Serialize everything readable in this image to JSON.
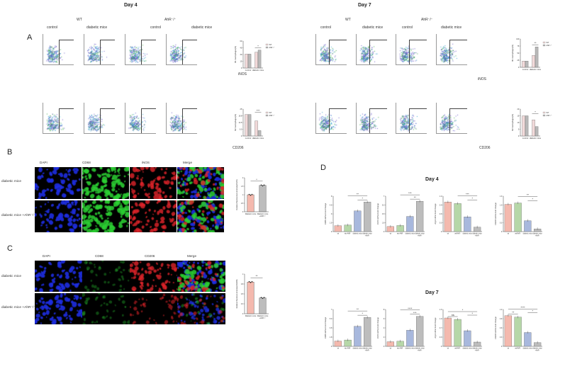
{
  "headers": {
    "day4": "Day 4",
    "day7": "Day 7"
  },
  "panels": {
    "A": "A",
    "B": "B",
    "C": "C",
    "D": "D"
  },
  "flow": {
    "group_wt": "WT",
    "group_ahr": "AhR⁻/⁻",
    "col_labels": [
      "control",
      "diabetic mice",
      "control",
      "diabetic mice"
    ],
    "axis_inos": "iNOS",
    "axis_cd206": "CD206"
  },
  "panelB": {
    "columns": [
      "DAPI",
      "CD68",
      "iNOS",
      "Merge"
    ],
    "rows": [
      "diabetic mice",
      "diabetic mice +AhR⁻/⁻"
    ]
  },
  "panelC": {
    "columns": [
      "DAPI",
      "CD68",
      "CD206",
      "Merge"
    ],
    "rows": [
      "diabetic mice",
      "diabetic mice +AhR⁻/⁻"
    ]
  },
  "panelD": {
    "day4": "Day 4",
    "day7": "Day 7"
  },
  "colors": {
    "wt": "#f1d9d9",
    "ahr": "#b9b9b9",
    "pink": "#f4b9ae",
    "green": "#b6d7a8",
    "blue": "#a8b8dd",
    "grey": "#bdbdbd",
    "dapi": "#1e2ee0",
    "cd68": "#2bcf33",
    "red": "#e0242a"
  },
  "chart_data": [
    {
      "type": "bar",
      "title": "",
      "ylabel": "M1 macrophages(%)",
      "categories": [
        "control",
        "diabetic mice"
      ],
      "series": [
        {
          "name": "WT",
          "values": [
            31,
            35
          ]
        },
        {
          "name": "AhR⁻/⁻",
          "values": [
            31,
            40
          ]
        }
      ],
      "ylim": [
        0,
        60
      ],
      "annotation": "*"
    },
    {
      "type": "bar",
      "title": "",
      "ylabel": "M2 macrophages(%)",
      "categories": [
        "control",
        "diabetic mice"
      ],
      "series": [
        {
          "name": "WT",
          "values": [
            20,
            14
          ]
        },
        {
          "name": "AhR⁻/⁻",
          "values": [
            20,
            5
          ]
        }
      ],
      "ylim": [
        0,
        25
      ],
      "annotation": "***"
    },
    {
      "type": "bar",
      "title": "",
      "ylabel": "M1 macrophages(%)",
      "categories": [
        "control",
        "diabetic mice"
      ],
      "series": [
        {
          "name": "WT",
          "values": [
            22,
            42
          ]
        },
        {
          "name": "AhR⁻/⁻",
          "values": [
            22,
            72
          ]
        }
      ],
      "ylim": [
        0,
        100
      ],
      "annotation": "**"
    },
    {
      "type": "bar",
      "title": "",
      "ylabel": "M2 macrophages(%)",
      "categories": [
        "control",
        "diabetic mice"
      ],
      "series": [
        {
          "name": "WT",
          "values": [
            15,
            12
          ]
        },
        {
          "name": "AhR⁻/⁻",
          "values": [
            15,
            7
          ]
        }
      ],
      "ylim": [
        0,
        20
      ],
      "annotation": "*"
    },
    {
      "type": "bar",
      "title": "",
      "ylabel": "Relative fluorescence intensity(iNOS)",
      "categories": [
        "Diabetic mice",
        "Diabetic mice+ AhR⁻/⁻"
      ],
      "values": [
        1.0,
        1.55
      ],
      "ylim": [
        0,
        2.0
      ],
      "annotation": "*"
    },
    {
      "type": "bar",
      "title": "",
      "ylabel": "Relative fluorence intensity(CD206)",
      "categories": [
        "Diabetic mice",
        "Diabetic mice+ AhR⁻/⁻"
      ],
      "values": [
        0.8,
        0.4
      ],
      "ylim": [
        0,
        1.0
      ],
      "annotation": "**"
    },
    {
      "type": "bar",
      "title": "",
      "ylabel": "CD86 mRNA Fold Change",
      "categories": [
        "wt",
        "wt+AhR⁻",
        "diabetic mice",
        "diabetic mice +AhR⁻"
      ],
      "values": [
        1.0,
        1.1,
        3.5,
        5.0
      ],
      "ylim": [
        0,
        6
      ],
      "annotations": [
        "**",
        "*"
      ]
    },
    {
      "type": "bar",
      "title": "",
      "ylabel": "iNOS mRNA Fold Change",
      "categories": [
        "wt",
        "wt+AhR⁻",
        "diabetic mice",
        "diabetic mice +AhR⁻"
      ],
      "values": [
        1.0,
        1.2,
        3.0,
        6.0
      ],
      "ylim": [
        0,
        7
      ],
      "annotations": [
        "***",
        "**"
      ]
    },
    {
      "type": "bar",
      "title": "",
      "ylabel": "Arg1 mRNA Fold Change",
      "categories": [
        "wt",
        "wt/AhR⁻",
        "diabetic mice",
        "diabetic mice +AhR⁻"
      ],
      "values": [
        1.0,
        0.95,
        0.5,
        0.15
      ],
      "ylim": [
        0,
        1.2
      ],
      "annotations": [
        "***",
        "*"
      ]
    },
    {
      "type": "bar",
      "title": "",
      "ylabel": "CD206 mRNA Fold Change",
      "categories": [
        "wt",
        "wt/AhR⁻",
        "diabetic mice",
        "diabetic mice +AhR⁻"
      ],
      "values": [
        1.0,
        1.05,
        0.4,
        0.1
      ],
      "ylim": [
        0,
        1.3
      ],
      "annotations": [
        "**",
        "*"
      ]
    },
    {
      "type": "bar",
      "title": "",
      "ylabel": "CD86 mRNA Fold Change",
      "categories": [
        "wt",
        "wt+AhR⁻",
        "diabetic mice",
        "diabetic mice +AhR⁻"
      ],
      "values": [
        1.0,
        1.2,
        3.8,
        5.5
      ],
      "ylim": [
        0,
        7
      ],
      "annotations": [
        "**",
        "*"
      ]
    },
    {
      "type": "bar",
      "title": "",
      "ylabel": "iNOS mRNA Fold Change",
      "categories": [
        "wt",
        "wt+AhR⁻",
        "diabetic mice",
        "diabetic mice +AhR⁻"
      ],
      "values": [
        1.0,
        1.1,
        3.5,
        6.5
      ],
      "ylim": [
        0,
        8
      ],
      "annotations": [
        "****",
        "***"
      ]
    },
    {
      "type": "bar",
      "title": "",
      "ylabel": "Arg1 mRNA Fold Change",
      "categories": [
        "wt",
        "wt/AhR⁻",
        "diabetic mice",
        "diabetic mice +AhR⁻"
      ],
      "values": [
        1.0,
        0.95,
        0.55,
        0.15
      ],
      "ylim": [
        0,
        1.3
      ],
      "annotations": [
        "ns",
        "*",
        "*"
      ]
    },
    {
      "type": "bar",
      "title": "",
      "ylabel": "CD206 mRNA Fold Change",
      "categories": [
        "wt",
        "wt/AhR⁻",
        "diabetic mice",
        "diabetic mice +AhR⁻"
      ],
      "values": [
        1.0,
        0.95,
        0.45,
        0.12
      ],
      "ylim": [
        0,
        1.2
      ],
      "annotations": [
        "**",
        "*",
        "****"
      ]
    }
  ]
}
